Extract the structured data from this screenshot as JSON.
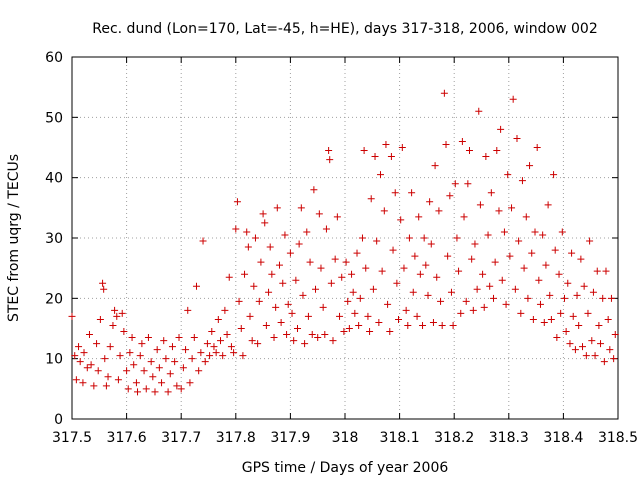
{
  "chart_data": {
    "type": "scatter",
    "title": "Rec. dund (Lon=170, Lat=-45, h=HE), days 317-318, 2006, window 002",
    "xlabel": "GPS time / Days of year 2006",
    "ylabel": "STEC from uqrg / TECUs",
    "xlim": [
      317.5,
      318.5
    ],
    "ylim": [
      0,
      60
    ],
    "xticks": [
      "317.5",
      "317.6",
      "317.7",
      "317.8",
      "317.9",
      "318",
      "318.1",
      "318.2",
      "318.3",
      "318.4",
      "318.5"
    ],
    "yticks": [
      "0",
      "10",
      "20",
      "30",
      "40",
      "50",
      "60"
    ],
    "grid": true,
    "marker": "plus",
    "color": "#cc0000",
    "series": [
      {
        "points": [
          [
            317.5,
            17.0
          ],
          [
            317.505,
            10.5
          ],
          [
            317.508,
            6.5
          ],
          [
            317.512,
            12.0
          ],
          [
            317.515,
            9.5
          ],
          [
            317.52,
            6.0
          ],
          [
            317.522,
            11.0
          ],
          [
            317.528,
            8.5
          ],
          [
            317.532,
            14.0
          ],
          [
            317.535,
            9.0
          ],
          [
            317.54,
            5.5
          ],
          [
            317.545,
            12.5
          ],
          [
            317.548,
            8.0
          ],
          [
            317.552,
            16.5
          ],
          [
            317.556,
            22.5
          ],
          [
            317.558,
            21.5
          ],
          [
            317.56,
            10.0
          ],
          [
            317.563,
            5.5
          ],
          [
            317.566,
            7.0
          ],
          [
            317.57,
            12.0
          ],
          [
            317.575,
            15.5
          ],
          [
            317.578,
            18.0
          ],
          [
            317.582,
            17.0
          ],
          [
            317.585,
            6.5
          ],
          [
            317.588,
            10.5
          ],
          [
            317.592,
            17.5
          ],
          [
            317.595,
            14.5
          ],
          [
            317.6,
            8.0
          ],
          [
            317.603,
            5.0
          ],
          [
            317.606,
            11.0
          ],
          [
            317.61,
            13.5
          ],
          [
            317.613,
            9.0
          ],
          [
            317.618,
            6.0
          ],
          [
            317.62,
            4.5
          ],
          [
            317.625,
            10.5
          ],
          [
            317.628,
            12.5
          ],
          [
            317.632,
            8.0
          ],
          [
            317.636,
            5.0
          ],
          [
            317.64,
            13.5
          ],
          [
            317.645,
            9.5
          ],
          [
            317.648,
            7.0
          ],
          [
            317.652,
            4.5
          ],
          [
            317.656,
            11.5
          ],
          [
            317.66,
            8.5
          ],
          [
            317.664,
            6.0
          ],
          [
            317.668,
            13.0
          ],
          [
            317.672,
            10.0
          ],
          [
            317.676,
            4.5
          ],
          [
            317.68,
            7.5
          ],
          [
            317.684,
            12.0
          ],
          [
            317.688,
            9.5
          ],
          [
            317.692,
            5.5
          ],
          [
            317.696,
            13.5
          ],
          [
            317.7,
            5.0
          ],
          [
            317.704,
            8.5
          ],
          [
            317.708,
            11.5
          ],
          [
            317.712,
            18.0
          ],
          [
            317.716,
            6.0
          ],
          [
            317.72,
            10.0
          ],
          [
            317.724,
            13.5
          ],
          [
            317.728,
            22.0
          ],
          [
            317.732,
            8.0
          ],
          [
            317.736,
            11.0
          ],
          [
            317.74,
            29.5
          ],
          [
            317.744,
            9.5
          ],
          [
            317.748,
            12.5
          ],
          [
            317.752,
            10.5
          ],
          [
            317.756,
            14.5
          ],
          [
            317.76,
            12.0
          ],
          [
            317.764,
            11.0
          ],
          [
            317.768,
            16.5
          ],
          [
            317.772,
            13.0
          ],
          [
            317.776,
            10.5
          ],
          [
            317.78,
            18.0
          ],
          [
            317.784,
            14.0
          ],
          [
            317.788,
            23.5
          ],
          [
            317.792,
            12.0
          ],
          [
            317.796,
            11.0
          ],
          [
            317.8,
            31.5
          ],
          [
            317.803,
            36.0
          ],
          [
            317.806,
            19.5
          ],
          [
            317.81,
            15.0
          ],
          [
            317.813,
            10.5
          ],
          [
            317.816,
            24.0
          ],
          [
            317.82,
            31.0
          ],
          [
            317.823,
            28.5
          ],
          [
            317.826,
            17.0
          ],
          [
            317.83,
            13.0
          ],
          [
            317.833,
            22.0
          ],
          [
            317.836,
            30.0
          ],
          [
            317.84,
            12.5
          ],
          [
            317.843,
            19.5
          ],
          [
            317.846,
            26.0
          ],
          [
            317.85,
            34.0
          ],
          [
            317.853,
            32.5
          ],
          [
            317.856,
            15.5
          ],
          [
            317.86,
            21.0
          ],
          [
            317.863,
            28.5
          ],
          [
            317.866,
            24.0
          ],
          [
            317.87,
            13.5
          ],
          [
            317.873,
            18.5
          ],
          [
            317.876,
            35.0
          ],
          [
            317.88,
            25.5
          ],
          [
            317.883,
            16.0
          ],
          [
            317.886,
            22.5
          ],
          [
            317.89,
            30.5
          ],
          [
            317.893,
            14.0
          ],
          [
            317.896,
            19.0
          ],
          [
            317.9,
            27.5
          ],
          [
            317.903,
            17.5
          ],
          [
            317.906,
            13.0
          ],
          [
            317.91,
            23.0
          ],
          [
            317.913,
            15.0
          ],
          [
            317.916,
            29.0
          ],
          [
            317.92,
            35.0
          ],
          [
            317.923,
            20.5
          ],
          [
            317.926,
            12.5
          ],
          [
            317.93,
            31.0
          ],
          [
            317.933,
            17.0
          ],
          [
            317.936,
            26.0
          ],
          [
            317.94,
            14.0
          ],
          [
            317.943,
            38.0
          ],
          [
            317.946,
            21.5
          ],
          [
            317.95,
            13.5
          ],
          [
            317.953,
            34.0
          ],
          [
            317.956,
            25.0
          ],
          [
            317.96,
            18.5
          ],
          [
            317.963,
            14.0
          ],
          [
            317.966,
            31.5
          ],
          [
            317.97,
            44.5
          ],
          [
            317.972,
            43.0
          ],
          [
            317.975,
            22.5
          ],
          [
            317.978,
            13.0
          ],
          [
            317.982,
            26.5
          ],
          [
            317.986,
            33.5
          ],
          [
            317.99,
            17.0
          ],
          [
            317.994,
            23.5
          ],
          [
            317.998,
            14.5
          ],
          [
            318.002,
            26.0
          ],
          [
            318.005,
            19.5
          ],
          [
            318.008,
            15.0
          ],
          [
            318.012,
            24.0
          ],
          [
            318.015,
            21.0
          ],
          [
            318.018,
            17.5
          ],
          [
            318.022,
            27.5
          ],
          [
            318.025,
            15.5
          ],
          [
            318.028,
            20.0
          ],
          [
            318.032,
            30.0
          ],
          [
            318.035,
            44.5
          ],
          [
            318.038,
            25.0
          ],
          [
            318.042,
            17.0
          ],
          [
            318.045,
            14.5
          ],
          [
            318.048,
            36.5
          ],
          [
            318.052,
            21.5
          ],
          [
            318.055,
            43.5
          ],
          [
            318.058,
            29.5
          ],
          [
            318.062,
            16.0
          ],
          [
            318.065,
            40.5
          ],
          [
            318.068,
            24.5
          ],
          [
            318.072,
            34.5
          ],
          [
            318.075,
            45.5
          ],
          [
            318.078,
            19.0
          ],
          [
            318.082,
            14.5
          ],
          [
            318.085,
            43.5
          ],
          [
            318.088,
            28.0
          ],
          [
            318.092,
            37.5
          ],
          [
            318.095,
            22.5
          ],
          [
            318.098,
            16.5
          ],
          [
            318.102,
            33.0
          ],
          [
            318.105,
            45.0
          ],
          [
            318.108,
            25.0
          ],
          [
            318.112,
            18.0
          ],
          [
            318.115,
            15.5
          ],
          [
            318.118,
            30.0
          ],
          [
            318.122,
            37.5
          ],
          [
            318.125,
            21.0
          ],
          [
            318.128,
            27.0
          ],
          [
            318.132,
            17.0
          ],
          [
            318.135,
            33.5
          ],
          [
            318.138,
            24.0
          ],
          [
            318.142,
            15.5
          ],
          [
            318.145,
            30.0
          ],
          [
            318.148,
            25.5
          ],
          [
            318.152,
            20.5
          ],
          [
            318.155,
            36.0
          ],
          [
            318.158,
            29.0
          ],
          [
            318.162,
            16.0
          ],
          [
            318.165,
            42.0
          ],
          [
            318.168,
            23.5
          ],
          [
            318.172,
            34.5
          ],
          [
            318.175,
            19.5
          ],
          [
            318.178,
            15.5
          ],
          [
            318.182,
            54.0
          ],
          [
            318.185,
            45.5
          ],
          [
            318.188,
            27.0
          ],
          [
            318.192,
            37.0
          ],
          [
            318.195,
            21.0
          ],
          [
            318.198,
            15.5
          ],
          [
            318.202,
            39.0
          ],
          [
            318.205,
            30.0
          ],
          [
            318.208,
            24.5
          ],
          [
            318.212,
            17.5
          ],
          [
            318.215,
            46.0
          ],
          [
            318.218,
            33.5
          ],
          [
            318.222,
            19.5
          ],
          [
            318.225,
            39.0
          ],
          [
            318.228,
            44.5
          ],
          [
            318.232,
            26.5
          ],
          [
            318.235,
            18.0
          ],
          [
            318.238,
            29.0
          ],
          [
            318.242,
            21.5
          ],
          [
            318.245,
            51.0
          ],
          [
            318.248,
            35.5
          ],
          [
            318.252,
            24.0
          ],
          [
            318.255,
            18.5
          ],
          [
            318.258,
            43.5
          ],
          [
            318.262,
            30.5
          ],
          [
            318.265,
            22.0
          ],
          [
            318.268,
            37.5
          ],
          [
            318.272,
            20.0
          ],
          [
            318.275,
            26.0
          ],
          [
            318.278,
            44.5
          ],
          [
            318.282,
            34.5
          ],
          [
            318.285,
            48.0
          ],
          [
            318.288,
            23.0
          ],
          [
            318.292,
            31.0
          ],
          [
            318.295,
            19.0
          ],
          [
            318.298,
            40.5
          ],
          [
            318.302,
            27.0
          ],
          [
            318.305,
            35.0
          ],
          [
            318.308,
            53.0
          ],
          [
            318.312,
            21.5
          ],
          [
            318.315,
            46.5
          ],
          [
            318.318,
            29.5
          ],
          [
            318.322,
            17.5
          ],
          [
            318.325,
            39.5
          ],
          [
            318.328,
            25.0
          ],
          [
            318.332,
            33.5
          ],
          [
            318.335,
            20.0
          ],
          [
            318.338,
            42.0
          ],
          [
            318.342,
            27.5
          ],
          [
            318.345,
            16.5
          ],
          [
            318.348,
            31.0
          ],
          [
            318.352,
            45.0
          ],
          [
            318.355,
            23.0
          ],
          [
            318.358,
            19.0
          ],
          [
            318.362,
            30.5
          ],
          [
            318.365,
            16.0
          ],
          [
            318.368,
            25.5
          ],
          [
            318.372,
            35.5
          ],
          [
            318.375,
            20.5
          ],
          [
            318.378,
            16.5
          ],
          [
            318.382,
            40.5
          ],
          [
            318.385,
            28.0
          ],
          [
            318.388,
            13.5
          ],
          [
            318.392,
            24.0
          ],
          [
            318.395,
            17.5
          ],
          [
            318.398,
            31.0
          ],
          [
            318.402,
            20.0
          ],
          [
            318.405,
            14.5
          ],
          [
            318.408,
            22.5
          ],
          [
            318.412,
            12.5
          ],
          [
            318.415,
            27.5
          ],
          [
            318.418,
            17.0
          ],
          [
            318.422,
            11.5
          ],
          [
            318.425,
            20.5
          ],
          [
            318.428,
            15.5
          ],
          [
            318.432,
            26.5
          ],
          [
            318.435,
            12.0
          ],
          [
            318.438,
            22.0
          ],
          [
            318.442,
            10.5
          ],
          [
            318.445,
            17.5
          ],
          [
            318.448,
            29.5
          ],
          [
            318.452,
            13.0
          ],
          [
            318.455,
            21.0
          ],
          [
            318.458,
            10.5
          ],
          [
            318.462,
            24.5
          ],
          [
            318.465,
            15.5
          ],
          [
            318.468,
            12.5
          ],
          [
            318.472,
            20.0
          ],
          [
            318.475,
            9.5
          ],
          [
            318.478,
            24.5
          ],
          [
            318.482,
            16.5
          ],
          [
            318.485,
            11.5
          ],
          [
            318.488,
            20.0
          ],
          [
            318.492,
            10.0
          ],
          [
            318.495,
            14.0
          ]
        ]
      }
    ]
  }
}
